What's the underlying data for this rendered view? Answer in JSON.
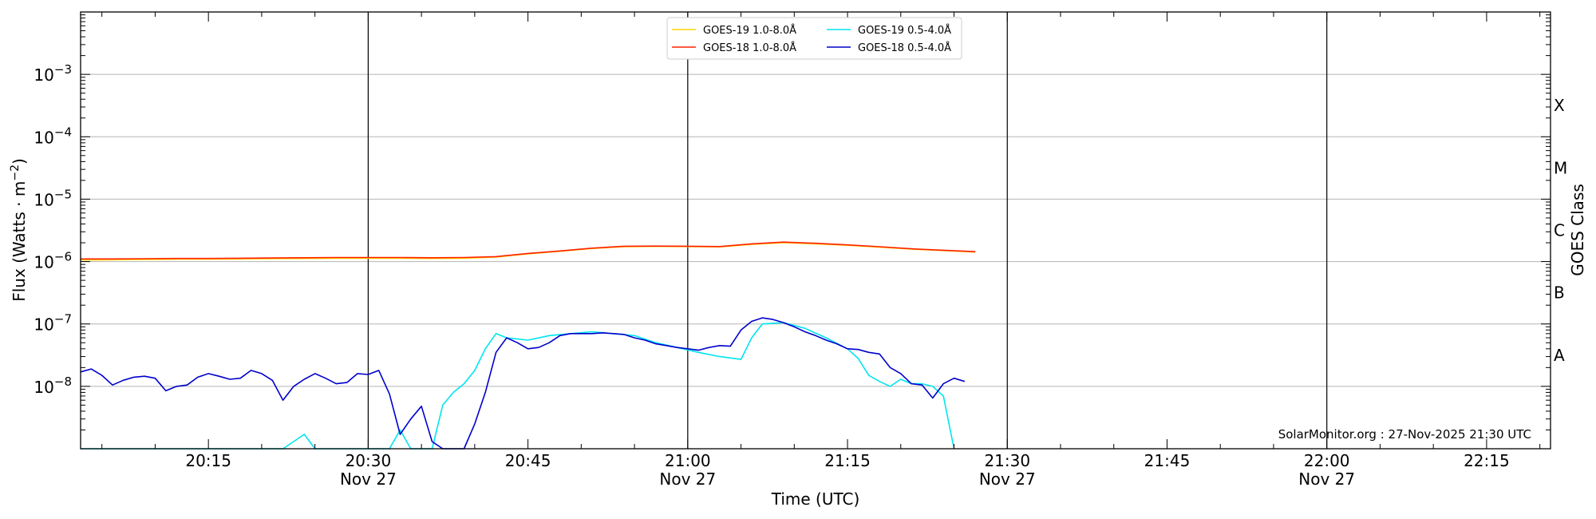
{
  "chart_data": {
    "type": "line",
    "title": "",
    "xlabel": "Time (UTC)",
    "ylabel_main": "Flux (Watts · m",
    "ylabel_sup": "−2",
    "ylabel_close": ")",
    "y2label": "GOES Class",
    "yscale": "log",
    "xlim": [
      "20:03",
      "22:21"
    ],
    "ylim": [
      1e-09,
      0.01
    ],
    "grid": "horizontal",
    "legend_position": "top-center",
    "x_ticks": [
      {
        "time": "20:15",
        "label": "20:15",
        "date": ""
      },
      {
        "time": "20:30",
        "label": "20:30",
        "date": "Nov 27"
      },
      {
        "time": "20:45",
        "label": "20:45",
        "date": ""
      },
      {
        "time": "21:00",
        "label": "21:00",
        "date": "Nov 27"
      },
      {
        "time": "21:15",
        "label": "21:15",
        "date": ""
      },
      {
        "time": "21:30",
        "label": "21:30",
        "date": "Nov 27"
      },
      {
        "time": "21:45",
        "label": "21:45",
        "date": ""
      },
      {
        "time": "22:00",
        "label": "22:00",
        "date": "Nov 27"
      },
      {
        "time": "22:15",
        "label": "22:15",
        "date": ""
      }
    ],
    "y_ticks": [
      {
        "value": 1e-08,
        "base": "10",
        "exp": "−8"
      },
      {
        "value": 1e-07,
        "base": "10",
        "exp": "−7"
      },
      {
        "value": 1e-06,
        "base": "10",
        "exp": "−6"
      },
      {
        "value": 1e-05,
        "base": "10",
        "exp": "−5"
      },
      {
        "value": 0.0001,
        "base": "10",
        "exp": "−4"
      },
      {
        "value": 0.001,
        "base": "10",
        "exp": "−3"
      }
    ],
    "class_labels": [
      {
        "label": "A",
        "value": 3.16e-08
      },
      {
        "label": "B",
        "value": 3.16e-07
      },
      {
        "label": "C",
        "value": 3.16e-06
      },
      {
        "label": "M",
        "value": 3.16e-05
      },
      {
        "label": "X",
        "value": 0.000316
      }
    ],
    "vlines": [
      "20:30",
      "21:00",
      "21:30",
      "22:00"
    ],
    "series": [
      {
        "name": "GOES-19 1.0-8.0Å",
        "color": "#ffd700",
        "x": [
          "20:03",
          "20:06",
          "20:09",
          "20:12",
          "20:15",
          "20:18",
          "20:21",
          "20:24",
          "20:27",
          "20:30",
          "20:33",
          "20:36",
          "20:39",
          "20:42",
          "20:45",
          "20:48",
          "20:51",
          "20:54",
          "20:57",
          "21:00",
          "21:03",
          "21:06",
          "21:09",
          "21:12",
          "21:15",
          "21:18",
          "21:21",
          "21:24",
          "21:27"
        ],
        "y": [
          1.06e-06,
          1.07e-06,
          1.08e-06,
          1.09e-06,
          1.09e-06,
          1.1e-06,
          1.11e-06,
          1.12e-06,
          1.13e-06,
          1.13e-06,
          1.13e-06,
          1.12e-06,
          1.13e-06,
          1.18e-06,
          1.33e-06,
          1.46e-06,
          1.62e-06,
          1.73e-06,
          1.75e-06,
          1.74e-06,
          1.72e-06,
          1.88e-06,
          2e-06,
          1.92e-06,
          1.82e-06,
          1.7e-06,
          1.58e-06,
          1.5e-06,
          1.42e-06
        ]
      },
      {
        "name": "GOES-18 1.0-8.0Å",
        "color": "#ff2200",
        "x": [
          "20:03",
          "20:06",
          "20:09",
          "20:12",
          "20:15",
          "20:18",
          "20:21",
          "20:24",
          "20:27",
          "20:30",
          "20:33",
          "20:36",
          "20:39",
          "20:42",
          "20:45",
          "20:48",
          "20:51",
          "20:54",
          "20:57",
          "21:00",
          "21:03",
          "21:06",
          "21:09",
          "21:12",
          "21:15",
          "21:18",
          "21:21",
          "21:24",
          "21:27"
        ],
        "y": [
          1.1e-06,
          1.1e-06,
          1.11e-06,
          1.12e-06,
          1.12e-06,
          1.13e-06,
          1.14e-06,
          1.15e-06,
          1.16e-06,
          1.16e-06,
          1.16e-06,
          1.15e-06,
          1.16e-06,
          1.2e-06,
          1.35e-06,
          1.48e-06,
          1.64e-06,
          1.76e-06,
          1.77e-06,
          1.76e-06,
          1.74e-06,
          1.92e-06,
          2.05e-06,
          1.96e-06,
          1.85e-06,
          1.73e-06,
          1.6e-06,
          1.52e-06,
          1.44e-06
        ]
      },
      {
        "name": "GOES-19 0.5-4.0Å",
        "color": "#00e5ee",
        "x": [
          "20:03",
          "20:10",
          "20:16",
          "20:22",
          "20:24",
          "20:25",
          "20:30",
          "20:32",
          "20:33",
          "20:34",
          "20:36",
          "20:37",
          "20:38",
          "20:39",
          "20:40",
          "20:41",
          "20:42",
          "20:43",
          "20:45",
          "20:47",
          "20:49",
          "20:51",
          "20:53",
          "20:55",
          "20:57",
          "20:59",
          "21:01",
          "21:03",
          "21:05",
          "21:06",
          "21:07",
          "21:09",
          "21:11",
          "21:13",
          "21:15",
          "21:16",
          "21:17",
          "21:18",
          "21:19",
          "21:20",
          "21:21",
          "21:22",
          "21:23",
          "21:24",
          "21:25"
        ],
        "y": [
          1e-09,
          1e-09,
          1e-09,
          1e-09,
          1.7e-09,
          1e-09,
          1e-09,
          1e-09,
          2e-09,
          1e-09,
          1e-09,
          5e-09,
          8e-09,
          1.1e-08,
          1.8e-08,
          4e-08,
          7e-08,
          6e-08,
          5.5e-08,
          6.5e-08,
          7e-08,
          7.5e-08,
          7e-08,
          6.5e-08,
          5e-08,
          4.2e-08,
          3.5e-08,
          3e-08,
          2.7e-08,
          6e-08,
          1e-07,
          1.05e-07,
          8.5e-08,
          6e-08,
          4e-08,
          2.8e-08,
          1.5e-08,
          1.2e-08,
          1e-08,
          1.3e-08,
          1.1e-08,
          1.1e-08,
          1e-08,
          7e-09,
          1e-09
        ]
      },
      {
        "name": "GOES-18 0.5-4.0Å",
        "color": "#0000cc",
        "x": [
          "20:03",
          "20:04",
          "20:05",
          "20:06",
          "20:07",
          "20:08",
          "20:09",
          "20:10",
          "20:11",
          "20:12",
          "20:13",
          "20:14",
          "20:15",
          "20:16",
          "20:17",
          "20:18",
          "20:19",
          "20:20",
          "20:21",
          "20:22",
          "20:23",
          "20:24",
          "20:25",
          "20:26",
          "20:27",
          "20:28",
          "20:29",
          "20:30",
          "20:31",
          "20:32",
          "20:33",
          "20:34",
          "20:35",
          "20:36",
          "20:37",
          "20:38",
          "20:39",
          "20:40",
          "20:41",
          "20:42",
          "20:43",
          "20:44",
          "20:45",
          "20:46",
          "20:47",
          "20:48",
          "20:49",
          "20:50",
          "20:51",
          "20:52",
          "20:53",
          "20:54",
          "20:55",
          "20:56",
          "20:57",
          "20:58",
          "20:59",
          "21:00",
          "21:01",
          "21:02",
          "21:03",
          "21:04",
          "21:05",
          "21:06",
          "21:07",
          "21:08",
          "21:09",
          "21:10",
          "21:11",
          "21:12",
          "21:13",
          "21:14",
          "21:15",
          "21:16",
          "21:17",
          "21:18",
          "21:19",
          "21:20",
          "21:21",
          "21:22",
          "21:23",
          "21:24",
          "21:25",
          "21:26"
        ],
        "y": [
          1.7e-08,
          1.9e-08,
          1.5e-08,
          1.05e-08,
          1.25e-08,
          1.4e-08,
          1.45e-08,
          1.35e-08,
          8.5e-09,
          1e-08,
          1.05e-08,
          1.4e-08,
          1.6e-08,
          1.45e-08,
          1.3e-08,
          1.35e-08,
          1.8e-08,
          1.6e-08,
          1.25e-08,
          6e-09,
          1e-08,
          1.3e-08,
          1.6e-08,
          1.35e-08,
          1.1e-08,
          1.15e-08,
          1.6e-08,
          1.55e-08,
          1.8e-08,
          7.5e-09,
          1.7e-09,
          3e-09,
          4.8e-09,
          1.3e-09,
          1e-09,
          1e-09,
          1e-09,
          2.5e-09,
          8e-09,
          3.5e-08,
          6e-08,
          5e-08,
          4e-08,
          4.2e-08,
          5e-08,
          6.5e-08,
          7e-08,
          7e-08,
          7e-08,
          7.2e-08,
          7e-08,
          6.8e-08,
          6e-08,
          5.5e-08,
          4.8e-08,
          4.5e-08,
          4.2e-08,
          4e-08,
          3.8e-08,
          4.2e-08,
          4.5e-08,
          4.4e-08,
          8e-08,
          1.1e-07,
          1.25e-07,
          1.18e-07,
          1.05e-07,
          9e-08,
          7.5e-08,
          6.5e-08,
          5.5e-08,
          4.8e-08,
          4e-08,
          3.9e-08,
          3.5e-08,
          3.3e-08,
          2e-08,
          1.6e-08,
          1.1e-08,
          1.05e-08,
          6.5e-09,
          1.1e-08,
          1.35e-08,
          1.2e-08
        ]
      }
    ],
    "credit": "SolarMonitor.org : 27-Nov-2025 21:30 UTC"
  }
}
